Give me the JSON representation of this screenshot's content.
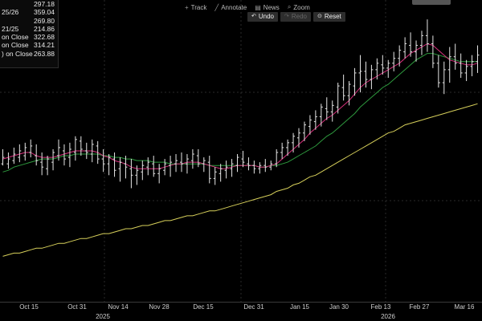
{
  "legend": {
    "rows": [
      {
        "label": "",
        "value": "297.18"
      },
      {
        "label": "25/26",
        "value": "359.04"
      },
      {
        "label": "",
        "value": "269.80"
      },
      {
        "label": "21/25",
        "value": "214.86"
      },
      {
        "label": "on Close",
        "value": "322.68"
      },
      {
        "label": "on Close",
        "value": "314.21"
      },
      {
        "label": ") on Close",
        "value": "263.88"
      }
    ]
  },
  "toolbar": {
    "track_label": "Track",
    "annotate_label": "Annotate",
    "news_label": "News",
    "zoom_label": "Zoom",
    "undo_label": "Undo",
    "redo_label": "Redo",
    "reset_label": "Reset"
  },
  "xaxis": {
    "ticks": [
      "Oct 15",
      "Oct 31",
      "Nov 14",
      "Nov 28",
      "Dec 15",
      "Dec 31",
      "Jan 15",
      "Jan 30",
      "Feb 13",
      "Feb 27",
      "Mar 16"
    ],
    "years": [
      "2025",
      "2026"
    ]
  },
  "colors": {
    "price": "#e6e6e6",
    "ma_short": "#d8317d",
    "ma_mid": "#2e9a3e",
    "ma_long": "#d6cf5a",
    "background": "#000000"
  },
  "chart_data": {
    "type": "line",
    "x_type": "date",
    "price_type": "ohlc-bars",
    "ohlc": [
      [
        283,
        282,
        292,
        287
      ],
      [
        283,
        280,
        290,
        286
      ],
      [
        285,
        283,
        293,
        289
      ],
      [
        287,
        284,
        295,
        291
      ],
      [
        288,
        285,
        296,
        293
      ],
      [
        290,
        287,
        298,
        294
      ],
      [
        288,
        282,
        295,
        285
      ],
      [
        284,
        276,
        290,
        281
      ],
      [
        280,
        276,
        288,
        286
      ],
      [
        284,
        279,
        292,
        290
      ],
      [
        288,
        285,
        298,
        293
      ],
      [
        291,
        282,
        295,
        286
      ],
      [
        287,
        281,
        296,
        292
      ],
      [
        290,
        285,
        300,
        298
      ],
      [
        297,
        288,
        300,
        292
      ],
      [
        291,
        286,
        296,
        290
      ],
      [
        289,
        284,
        298,
        295
      ],
      [
        294,
        283,
        297,
        286
      ],
      [
        286,
        278,
        292,
        283
      ],
      [
        283,
        276,
        289,
        287
      ],
      [
        286,
        275,
        290,
        279
      ],
      [
        280,
        272,
        287,
        284
      ],
      [
        283,
        274,
        288,
        281
      ],
      [
        280,
        268,
        286,
        276
      ],
      [
        276,
        270,
        282,
        279
      ],
      [
        278,
        273,
        285,
        282
      ],
      [
        281,
        276,
        287,
        284
      ],
      [
        283,
        275,
        288,
        277
      ],
      [
        277,
        271,
        283,
        280
      ],
      [
        279,
        276,
        286,
        283
      ],
      [
        282,
        275,
        288,
        284
      ],
      [
        283,
        278,
        289,
        285
      ],
      [
        284,
        278,
        290,
        283
      ],
      [
        283,
        277,
        289,
        286
      ],
      [
        285,
        280,
        292,
        289
      ],
      [
        288,
        281,
        292,
        283
      ],
      [
        283,
        278,
        287,
        285
      ],
      [
        284,
        271,
        288,
        274
      ],
      [
        274,
        270,
        281,
        278
      ],
      [
        277,
        272,
        283,
        280
      ],
      [
        279,
        274,
        285,
        281
      ],
      [
        280,
        275,
        286,
        283
      ],
      [
        282,
        278,
        289,
        287
      ],
      [
        286,
        281,
        291,
        284
      ],
      [
        283,
        279,
        287,
        282
      ],
      [
        282,
        277,
        285,
        280
      ],
      [
        280,
        277,
        284,
        282
      ],
      [
        282,
        278,
        286,
        281
      ],
      [
        281,
        279,
        285,
        283
      ],
      [
        283,
        281,
        292,
        290
      ],
      [
        290,
        286,
        296,
        293
      ],
      [
        293,
        288,
        298,
        296
      ],
      [
        296,
        290,
        302,
        300
      ],
      [
        299,
        293,
        305,
        302
      ],
      [
        302,
        297,
        309,
        307
      ],
      [
        306,
        301,
        313,
        310
      ],
      [
        309,
        304,
        316,
        312
      ],
      [
        312,
        306,
        320,
        318
      ],
      [
        317,
        310,
        324,
        315
      ],
      [
        315,
        309,
        322,
        319
      ],
      [
        318,
        314,
        333,
        331
      ],
      [
        330,
        322,
        338,
        325
      ],
      [
        325,
        319,
        334,
        332
      ],
      [
        331,
        325,
        342,
        339
      ],
      [
        339,
        327,
        350,
        340
      ],
      [
        340,
        330,
        346,
        335
      ],
      [
        335,
        329,
        344,
        341
      ],
      [
        341,
        335,
        348,
        345
      ],
      [
        344,
        338,
        350,
        342
      ],
      [
        342,
        336,
        347,
        345
      ],
      [
        345,
        340,
        352,
        348
      ],
      [
        348,
        343,
        356,
        353
      ],
      [
        352,
        348,
        361,
        357
      ],
      [
        356,
        349,
        364,
        352
      ],
      [
        352,
        346,
        359,
        356
      ],
      [
        356,
        350,
        365,
        362
      ],
      [
        362,
        352,
        372,
        357
      ],
      [
        357,
        342,
        362,
        345
      ],
      [
        345,
        330,
        350,
        333
      ],
      [
        333,
        326,
        346,
        341
      ],
      [
        341,
        333,
        355,
        349
      ],
      [
        349,
        341,
        357,
        345
      ],
      [
        345,
        336,
        351,
        339
      ],
      [
        339,
        334,
        347,
        343
      ],
      [
        343,
        337,
        350,
        346
      ],
      [
        346,
        339,
        356,
        350
      ]
    ],
    "ma_short": [
      286,
      287,
      288,
      289,
      290,
      290,
      288,
      287,
      287,
      287,
      288,
      289,
      290,
      291,
      291,
      291,
      291,
      290,
      288,
      287,
      285,
      284,
      283,
      281,
      280,
      280,
      280,
      280,
      280,
      281,
      282,
      283,
      283,
      284,
      284,
      284,
      283,
      282,
      281,
      280,
      280,
      281,
      282,
      282,
      282,
      282,
      281,
      281,
      282,
      283,
      286,
      289,
      292,
      295,
      298,
      302,
      305,
      308,
      311,
      313,
      316,
      319,
      322,
      326,
      330,
      333,
      335,
      337,
      339,
      341,
      343,
      345,
      348,
      351,
      353,
      355,
      357,
      356,
      353,
      350,
      347,
      346,
      345,
      344,
      344,
      345
    ],
    "ma_mid": [
      278,
      279,
      281,
      282,
      283,
      284,
      285,
      286,
      286,
      286,
      287,
      288,
      288,
      289,
      289,
      289,
      289,
      289,
      288,
      288,
      287,
      287,
      286,
      286,
      285,
      285,
      285,
      284,
      284,
      284,
      283,
      283,
      283,
      283,
      283,
      283,
      283,
      282,
      282,
      282,
      282,
      282,
      282,
      282,
      282,
      282,
      281,
      281,
      282,
      282,
      283,
      284,
      286,
      288,
      290,
      292,
      294,
      297,
      300,
      302,
      305,
      308,
      311,
      314,
      318,
      321,
      324,
      327,
      330,
      332,
      335,
      338,
      341,
      344,
      347,
      349,
      351,
      351,
      350,
      349,
      348,
      347,
      346,
      346,
      346,
      346
    ],
    "ma_long": [
      226,
      227,
      228,
      228,
      229,
      230,
      231,
      231,
      232,
      233,
      234,
      234,
      235,
      236,
      237,
      237,
      238,
      239,
      240,
      240,
      241,
      242,
      243,
      243,
      244,
      245,
      245,
      246,
      247,
      248,
      248,
      249,
      250,
      251,
      251,
      252,
      253,
      254,
      254,
      255,
      256,
      257,
      258,
      259,
      260,
      261,
      262,
      263,
      264,
      266,
      267,
      268,
      270,
      271,
      273,
      275,
      276,
      278,
      280,
      282,
      284,
      286,
      288,
      290,
      292,
      294,
      296,
      298,
      300,
      302,
      303,
      305,
      307,
      308,
      309,
      310,
      311,
      312,
      313,
      314,
      315,
      316,
      317,
      318,
      319,
      320
    ],
    "xlabel": "",
    "ylabel": "",
    "ylim": [
      200,
      380
    ],
    "grid": true
  }
}
